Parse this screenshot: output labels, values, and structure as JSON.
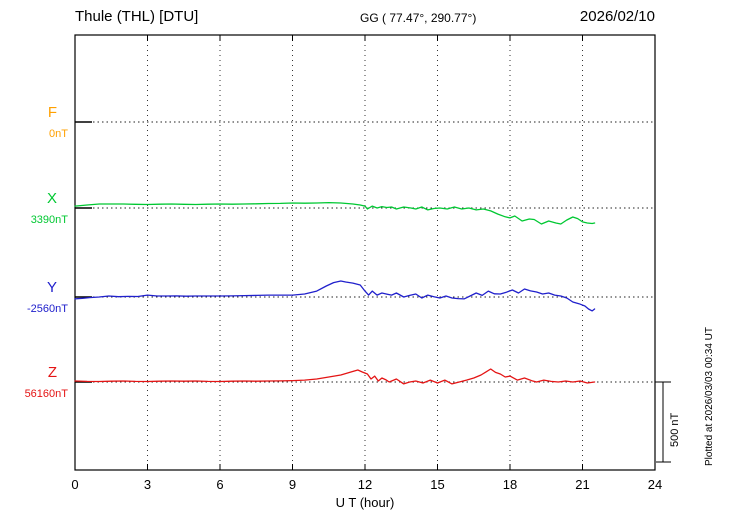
{
  "header": {
    "station": "Thule (THL)  [DTU]",
    "coords": "GG ( 77.47°, 290.77°)",
    "date": "2026/02/10"
  },
  "side": {
    "plotted_at": "Plotted at 2026/03/03 00:34 UT",
    "scale_label": "500 nT"
  },
  "chart_data": {
    "type": "line",
    "title": "Thule (THL)  [DTU]",
    "xlabel": "U T (hour)",
    "xlim": [
      0,
      24
    ],
    "x_ticks": [
      0,
      3,
      6,
      9,
      12,
      15,
      18,
      21,
      24
    ],
    "grid": "dotted",
    "legend_position": "left-axis",
    "scale_bar_nT": 500,
    "points_format": "[UT_hour, offset_nT_from_component_baseline]",
    "components": [
      {
        "label": "F",
        "baseline_label": "0nT",
        "color": "#ffa000",
        "points": []
      },
      {
        "label": "X",
        "baseline_label": "3390nT",
        "color": "#00c832",
        "points": [
          [
            0,
            12
          ],
          [
            0.5,
            19
          ],
          [
            1,
            25
          ],
          [
            1.5,
            25
          ],
          [
            2,
            25
          ],
          [
            2.5,
            23
          ],
          [
            3,
            22
          ],
          [
            3.5,
            24
          ],
          [
            4,
            25
          ],
          [
            4.5,
            23
          ],
          [
            5,
            22
          ],
          [
            5.5,
            24
          ],
          [
            6,
            25
          ],
          [
            6.5,
            24
          ],
          [
            7,
            25
          ],
          [
            7.5,
            26
          ],
          [
            8,
            28
          ],
          [
            8.5,
            29
          ],
          [
            9,
            31
          ],
          [
            9.5,
            30
          ],
          [
            10,
            31
          ],
          [
            10.5,
            34
          ],
          [
            11,
            31
          ],
          [
            11.5,
            25
          ],
          [
            11.8,
            19
          ],
          [
            12,
            12
          ],
          [
            12.1,
            -6
          ],
          [
            12.3,
            12
          ],
          [
            12.5,
            0
          ],
          [
            12.7,
            9
          ],
          [
            12.9,
            3
          ],
          [
            13.1,
            6
          ],
          [
            13.3,
            -6
          ],
          [
            13.6,
            6
          ],
          [
            13.9,
            0
          ],
          [
            14.1,
            -6
          ],
          [
            14.35,
            6
          ],
          [
            14.6,
            -12
          ],
          [
            14.85,
            -3
          ],
          [
            15.1,
            0
          ],
          [
            15.4,
            -6
          ],
          [
            15.7,
            6
          ],
          [
            16,
            -6
          ],
          [
            16.3,
            0
          ],
          [
            16.6,
            -12
          ],
          [
            16.9,
            -6
          ],
          [
            17.2,
            -18
          ],
          [
            17.5,
            -38
          ],
          [
            17.8,
            -55
          ],
          [
            18,
            -62
          ],
          [
            18.2,
            -50
          ],
          [
            18.5,
            -81
          ],
          [
            18.8,
            -69
          ],
          [
            19,
            -72
          ],
          [
            19.3,
            -100
          ],
          [
            19.6,
            -81
          ],
          [
            19.9,
            -94
          ],
          [
            20.1,
            -100
          ],
          [
            20.35,
            -75
          ],
          [
            20.6,
            -56
          ],
          [
            20.8,
            -66
          ],
          [
            21,
            -87
          ],
          [
            21.2,
            -94
          ],
          [
            21.4,
            -97
          ],
          [
            21.5,
            -94
          ]
        ]
      },
      {
        "label": "Y",
        "baseline_label": "-2560nT",
        "color": "#2020cc",
        "points": [
          [
            0,
            -12
          ],
          [
            0.3,
            -8
          ],
          [
            0.6,
            -4
          ],
          [
            1,
            0
          ],
          [
            1.4,
            6
          ],
          [
            1.8,
            2
          ],
          [
            2.2,
            4
          ],
          [
            2.6,
            3
          ],
          [
            3,
            12
          ],
          [
            3.4,
            6
          ],
          [
            3.8,
            6
          ],
          [
            4.2,
            7
          ],
          [
            4.6,
            5
          ],
          [
            5,
            6
          ],
          [
            5.5,
            6
          ],
          [
            6,
            6
          ],
          [
            6.5,
            7
          ],
          [
            7,
            9
          ],
          [
            7.5,
            10
          ],
          [
            8,
            12
          ],
          [
            8.5,
            12
          ],
          [
            9,
            12
          ],
          [
            9.5,
            19
          ],
          [
            10,
            37
          ],
          [
            10.4,
            69
          ],
          [
            10.7,
            90
          ],
          [
            11,
            100
          ],
          [
            11.2,
            94
          ],
          [
            11.5,
            87
          ],
          [
            11.8,
            75
          ],
          [
            12,
            37
          ],
          [
            12.15,
            12
          ],
          [
            12.3,
            37
          ],
          [
            12.5,
            12
          ],
          [
            12.7,
            25
          ],
          [
            12.9,
            18
          ],
          [
            13.1,
            12
          ],
          [
            13.3,
            25
          ],
          [
            13.6,
            0
          ],
          [
            13.85,
            10
          ],
          [
            14.1,
            19
          ],
          [
            14.35,
            -6
          ],
          [
            14.6,
            12
          ],
          [
            14.85,
            2
          ],
          [
            15.1,
            -6
          ],
          [
            15.35,
            6
          ],
          [
            15.6,
            -6
          ],
          [
            15.85,
            -10
          ],
          [
            16.1,
            -12
          ],
          [
            16.35,
            6
          ],
          [
            16.6,
            25
          ],
          [
            16.85,
            10
          ],
          [
            17.1,
            37
          ],
          [
            17.35,
            20
          ],
          [
            17.6,
            19
          ],
          [
            17.85,
            30
          ],
          [
            18.1,
            44
          ],
          [
            18.35,
            25
          ],
          [
            18.6,
            50
          ],
          [
            18.85,
            38
          ],
          [
            19.1,
            31
          ],
          [
            19.35,
            19
          ],
          [
            19.6,
            25
          ],
          [
            19.85,
            12
          ],
          [
            20.1,
            6
          ],
          [
            20.35,
            -6
          ],
          [
            20.6,
            -31
          ],
          [
            20.85,
            -42
          ],
          [
            21.1,
            -56
          ],
          [
            21.25,
            -75
          ],
          [
            21.4,
            -87
          ],
          [
            21.5,
            -75
          ]
        ]
      },
      {
        "label": "Z",
        "baseline_label": "56160nT",
        "color": "#e41414",
        "points": [
          [
            0,
            6
          ],
          [
            0.5,
            4
          ],
          [
            1,
            3
          ],
          [
            1.5,
            5
          ],
          [
            2,
            6
          ],
          [
            2.5,
            4
          ],
          [
            3,
            3
          ],
          [
            3.5,
            5
          ],
          [
            4,
            6
          ],
          [
            4.5,
            5
          ],
          [
            5,
            6
          ],
          [
            5.5,
            4
          ],
          [
            6,
            3
          ],
          [
            6.5,
            5
          ],
          [
            7,
            6
          ],
          [
            7.5,
            5
          ],
          [
            8,
            6
          ],
          [
            8.5,
            7
          ],
          [
            9,
            9
          ],
          [
            9.5,
            12
          ],
          [
            10,
            19
          ],
          [
            10.5,
            31
          ],
          [
            11,
            44
          ],
          [
            11.4,
            62
          ],
          [
            11.7,
            75
          ],
          [
            11.9,
            62
          ],
          [
            12.1,
            50
          ],
          [
            12.25,
            19
          ],
          [
            12.4,
            37
          ],
          [
            12.55,
            6
          ],
          [
            12.7,
            25
          ],
          [
            12.85,
            15
          ],
          [
            13,
            0
          ],
          [
            13.3,
            19
          ],
          [
            13.6,
            -12
          ],
          [
            13.85,
            0
          ],
          [
            14.1,
            6
          ],
          [
            14.4,
            -6
          ],
          [
            14.7,
            12
          ],
          [
            15,
            -6
          ],
          [
            15.3,
            12
          ],
          [
            15.6,
            -12
          ],
          [
            15.9,
            0
          ],
          [
            16.2,
            12
          ],
          [
            16.5,
            25
          ],
          [
            16.8,
            44
          ],
          [
            17,
            62
          ],
          [
            17.2,
            81
          ],
          [
            17.4,
            60
          ],
          [
            17.6,
            50
          ],
          [
            17.8,
            31
          ],
          [
            18,
            37
          ],
          [
            18.3,
            12
          ],
          [
            18.6,
            25
          ],
          [
            18.9,
            8
          ],
          [
            19.1,
            0
          ],
          [
            19.4,
            12
          ],
          [
            19.7,
            4
          ],
          [
            20,
            0
          ],
          [
            20.3,
            6
          ],
          [
            20.6,
            0
          ],
          [
            20.9,
            6
          ],
          [
            21.2,
            -6
          ],
          [
            21.5,
            0
          ]
        ]
      }
    ]
  }
}
